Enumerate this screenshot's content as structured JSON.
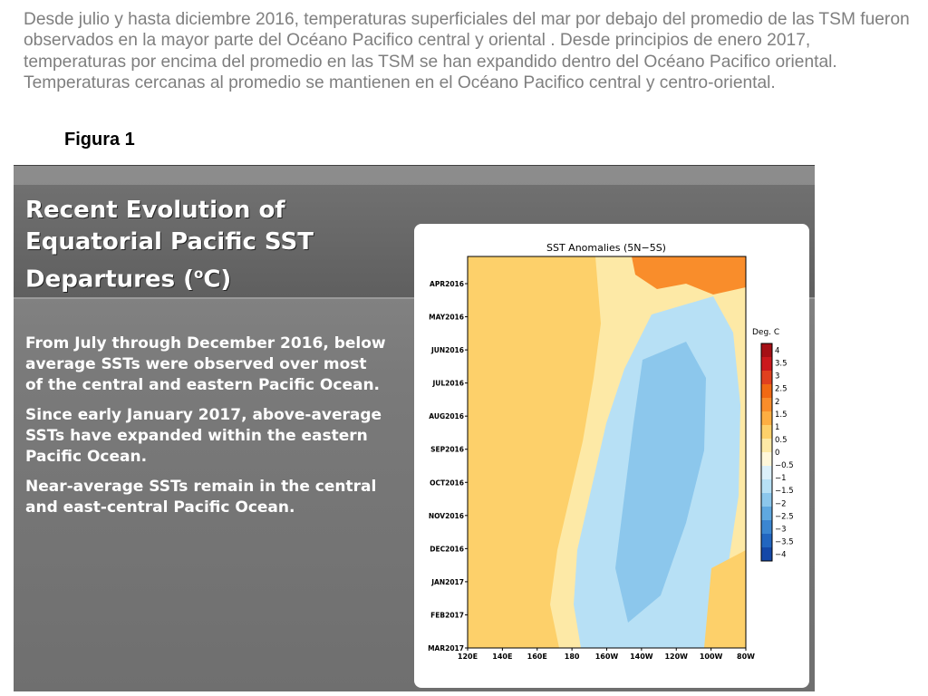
{
  "intro_paragraph": "Desde julio y hasta diciembre 2016, temperaturas superficiales del mar por debajo del promedio de las TSM  fueron observados en la mayor parte del Océano Pacifico  central y oriental .  Desde principios de enero 2017, temperaturas por encima del promedio en las TSM se han expandido dentro del Océano Pacifico oriental. Temperaturas cercanas al promedio se mantienen en el Océano Pacifico central y centro-oriental.",
  "figure_label": "Figura 1",
  "slide": {
    "title_lines": [
      "Recent Evolution of",
      "Equatorial Pacific SST",
      "Departures ("
    ],
    "title_sup": "o",
    "title_end": "C)",
    "bullets": [
      "From July through December 2016, below average SSTs were observed over most of the central and eastern Pacific Ocean.",
      "Since early January 2017, above-average SSTs have expanded within the eastern Pacific Ocean.",
      "Near-average SSTs remain in the central and east-central Pacific Ocean."
    ]
  },
  "chart_data": {
    "type": "heatmap",
    "title": "SST Anomalies (5N−5S)",
    "x_ticks": [
      "120E",
      "140E",
      "160E",
      "180",
      "160W",
      "140W",
      "120W",
      "100W",
      "80W"
    ],
    "y_ticks": [
      "APR2016",
      "MAY2016",
      "JUN2016",
      "JUL2016",
      "AUG2016",
      "SEP2016",
      "OCT2016",
      "NOV2016",
      "DEC2016",
      "JAN2017",
      "FEB2017",
      "MAR2017"
    ],
    "colorbar": {
      "title": "Deg. C",
      "labels": [
        "4",
        "3.5",
        "3",
        "2.5",
        "2",
        "1.5",
        "1",
        "0.5",
        "0",
        "−0.5",
        "−1",
        "−1.5",
        "−2",
        "−2.5",
        "−3",
        "−3.5",
        "−4"
      ],
      "colors": [
        "#a50f15",
        "#cb181d",
        "#e0401f",
        "#f16913",
        "#f98d2b",
        "#fdae42",
        "#fdd06a",
        "#fde9a6",
        "#fff7da",
        "#dcf0fa",
        "#b7e0f5",
        "#8cc7ec",
        "#5fa8e0",
        "#3b86d1",
        "#2266c0",
        "#1448a8"
      ]
    },
    "regions": {
      "warm_top": "#f98d2b",
      "warm": "#fdd06a",
      "near_zero": "#fde9a6",
      "cool": "#b7e0f5",
      "cold": "#8cc7ec"
    }
  }
}
